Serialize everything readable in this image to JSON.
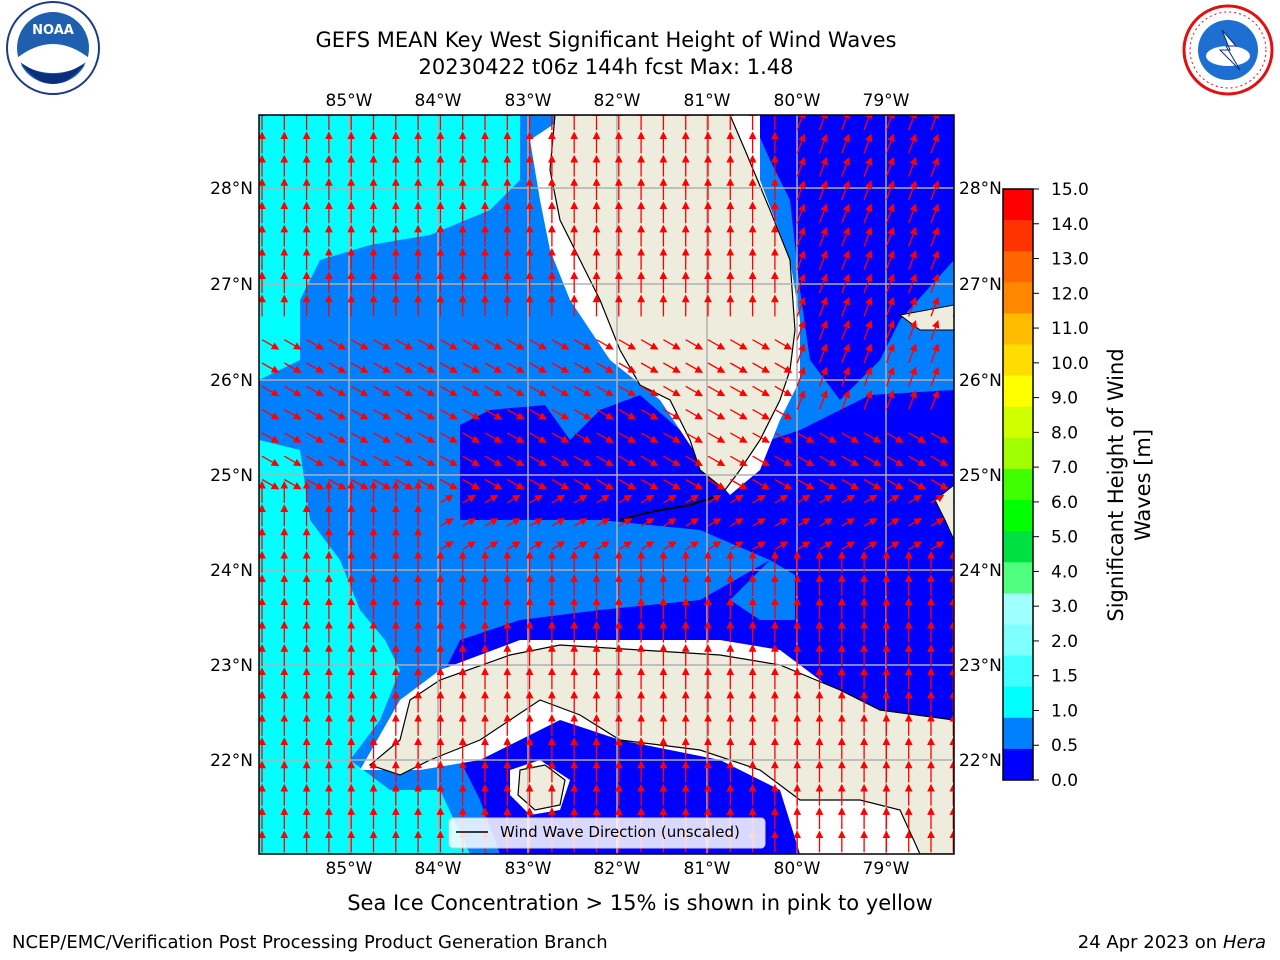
{
  "title": {
    "line1": "GEFS MEAN Key West Significant Height of Wind Waves",
    "line2": "20230422 t06z 144h fcst   Max: 1.48"
  },
  "map": {
    "lon_ticks": [
      "85°W",
      "84°W",
      "83°W",
      "82°W",
      "81°W",
      "80°W",
      "79°W"
    ],
    "lat_ticks": [
      "28°N",
      "27°N",
      "26°N",
      "25°N",
      "24°N",
      "23°N",
      "22°N"
    ],
    "legend_label": "Wind Wave Direction (unscaled)",
    "land_color": "#eeeddd",
    "arrow_color": "#ff0000"
  },
  "colorbar": {
    "label_line1": "Significant Height of Wind",
    "label_line2": "Waves [m]",
    "ticks": [
      "15.0",
      "14.0",
      "13.0",
      "12.0",
      "11.0",
      "10.0",
      "9.0",
      "8.0",
      "7.0",
      "6.0",
      "5.0",
      "4.0",
      "3.0",
      "2.0",
      "1.5",
      "1.0",
      "0.5",
      "0.0"
    ],
    "colors": [
      "#0000ff",
      "#0080ff",
      "#00ffff",
      "#40ffff",
      "#80ffff",
      "#a0ffff",
      "#50ff80",
      "#00e040",
      "#00ff00",
      "#40ff00",
      "#a0ff00",
      "#d0ff00",
      "#ffff00",
      "#ffdd00",
      "#ffbb00",
      "#ff8800",
      "#ff6600",
      "#ff3300",
      "#ff0000"
    ]
  },
  "bottom_note": "Sea Ice Concentration > 15% is shown in pink to yellow",
  "footer": {
    "left": "NCEP/EMC/Verification Post Processing Product Generation Branch",
    "right_prefix": "24 Apr 2023 on ",
    "right_italic": "Hera"
  },
  "logos": {
    "noaa_text": "NOAA",
    "nws_text": "NATIONAL WEATHER SERVICE"
  }
}
